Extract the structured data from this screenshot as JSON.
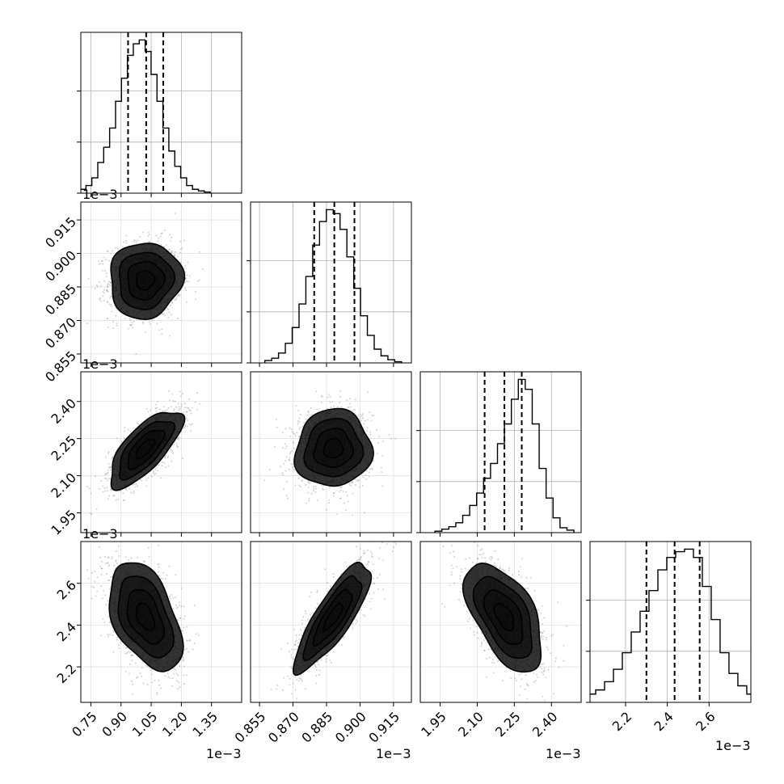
{
  "chart_data": {
    "type": "corner",
    "n_params": 4,
    "grid": true,
    "colors": {
      "line": "#000000",
      "grid": "#b0b0b0",
      "density": "#000000",
      "points": "#7a7a7a"
    },
    "params": [
      {
        "range": [
          0.7,
          1.5
        ],
        "ticks": [
          0.75,
          0.9,
          1.05,
          1.2,
          1.35
        ],
        "tick_labels": [
          "0.75",
          "0.90",
          "1.05",
          "1.20",
          "1.35"
        ],
        "offset": "1e−3",
        "mean": 1.02,
        "sd": 0.09,
        "quantiles": [
          0.935,
          1.025,
          1.11
        ],
        "hist_counts": [
          1,
          2,
          4,
          8,
          12,
          17,
          24,
          30,
          36,
          39,
          40,
          37,
          31,
          24,
          17,
          11,
          7,
          4,
          2,
          1,
          0.6,
          0.3
        ]
      },
      {
        "range": [
          0.851,
          0.923
        ],
        "ticks": [
          0.855,
          0.87,
          0.885,
          0.9,
          0.915
        ],
        "tick_labels": [
          "0.855",
          "0.870",
          "0.885",
          "0.900",
          "0.915"
        ],
        "offset": "1e−3",
        "mean": 0.888,
        "sd": 0.0085,
        "quantiles": [
          0.8795,
          0.8885,
          0.8975
        ],
        "hist_counts": [
          0.6,
          1.2,
          2.5,
          5,
          9,
          15,
          22,
          30,
          36,
          39,
          38,
          34,
          27,
          19,
          12,
          7,
          3.5,
          1.8,
          0.8,
          0.3
        ]
      },
      {
        "range": [
          1.87,
          2.52
        ],
        "ticks": [
          1.95,
          2.1,
          2.25,
          2.4
        ],
        "tick_labels": [
          "1.95",
          "2.10",
          "2.25",
          "2.40"
        ],
        "offset": "1e−3",
        "mean": 2.21,
        "sd": 0.078,
        "quantiles": [
          2.13,
          2.21,
          2.28
        ],
        "hist_counts": [
          0.3,
          0.7,
          1.2,
          2,
          3.5,
          5.5,
          8,
          11,
          14,
          18,
          22,
          27,
          31,
          29,
          22,
          13,
          7,
          3,
          1,
          0.5
        ]
      },
      {
        "range": [
          2.03,
          2.8
        ],
        "ticks": [
          2.2,
          2.4,
          2.6
        ],
        "tick_labels": [
          "2.2",
          "2.4",
          "2.6"
        ],
        "offset": "1e−3",
        "mean": 2.44,
        "sd": 0.13,
        "quantiles": [
          2.3,
          2.435,
          2.555
        ],
        "hist_counts": [
          0.5,
          1,
          1.5,
          2.5,
          4,
          6,
          8.5,
          11,
          13.5,
          16,
          17.5,
          18.2,
          18.5,
          17.5,
          14,
          10,
          6,
          3.5,
          2,
          1,
          0.5,
          0.2
        ]
      }
    ],
    "correlations": {
      "1-0": 0.05,
      "2-0": 0.72,
      "2-1": 0.05,
      "3-0": -0.45,
      "3-1": 0.83,
      "3-2": -0.55
    },
    "contour_levels": [
      0.5,
      1.0,
      1.5,
      2.0
    ]
  }
}
